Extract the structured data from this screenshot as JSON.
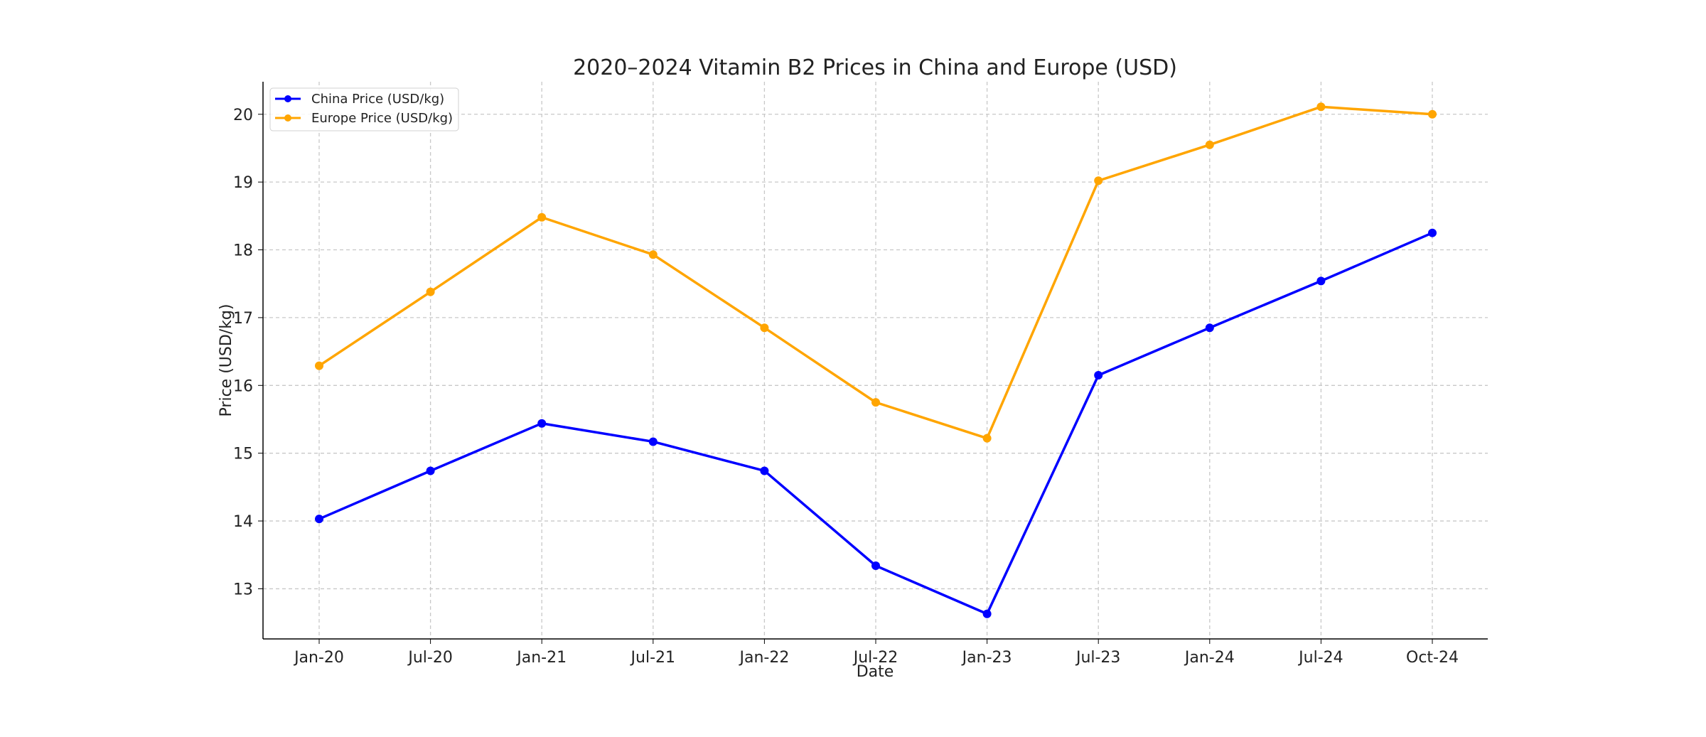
{
  "chart_data": {
    "type": "line",
    "title": "2020–2024 Vitamin B2 Prices in China and Europe (USD)",
    "xlabel": "Date",
    "ylabel": "Price (USD/kg)",
    "categories": [
      "Jan-20",
      "Jul-20",
      "Jan-21",
      "Jul-21",
      "Jan-22",
      "Jul-22",
      "Jan-23",
      "Jul-23",
      "Jan-24",
      "Jul-24",
      "Oct-24"
    ],
    "ylim": [
      12.26,
      20.48
    ],
    "yticks": [
      13,
      14,
      15,
      16,
      17,
      18,
      19,
      20
    ],
    "grid": true,
    "legend_position": "top-left",
    "series": [
      {
        "name": "China Price (USD/kg)",
        "color": "#0000ff",
        "values": [
          14.03,
          14.74,
          15.44,
          15.17,
          14.74,
          13.34,
          12.63,
          16.15,
          16.85,
          17.54,
          18.25
        ]
      },
      {
        "name": "Europe Price (USD/kg)",
        "color": "#ffa500",
        "values": [
          16.29,
          17.38,
          18.48,
          17.93,
          16.85,
          15.75,
          15.22,
          19.02,
          19.55,
          20.11,
          20.0
        ]
      }
    ]
  }
}
